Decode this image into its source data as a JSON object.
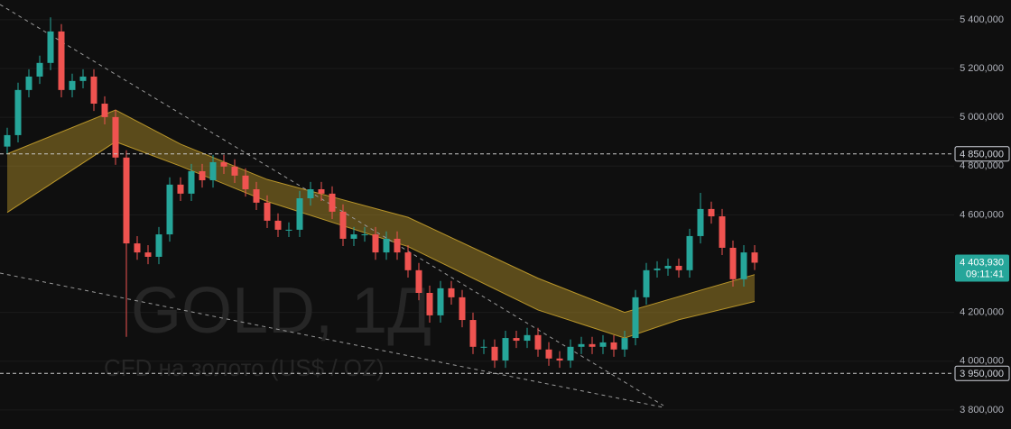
{
  "chart_data": {
    "type": "candlestick",
    "watermark": {
      "title": "GOLD, 1Д",
      "subtitle": "CFD на золото (US$ / OZ)"
    },
    "up_color": "#26a69a",
    "down_color": "#ef5350",
    "ylim": [
      3722,
      5481
    ],
    "yticks": [
      {
        "value": 5400,
        "label": "5 400,000"
      },
      {
        "value": 5200,
        "label": "5 200,000"
      },
      {
        "value": 5000,
        "label": "5 000,000"
      },
      {
        "value": 4800,
        "label": "4 800,000"
      },
      {
        "value": 4600,
        "label": "4 600,000"
      },
      {
        "value": 4200,
        "label": "4 200,000"
      },
      {
        "value": 4000,
        "label": "4 000,000"
      },
      {
        "value": 3800,
        "label": "3 800,000"
      }
    ],
    "grid": true,
    "levels": [
      {
        "value": 4850,
        "label": "4 850,000"
      },
      {
        "value": 3950,
        "label": "3 950,000"
      }
    ],
    "last": {
      "value": 4403.93,
      "label": "4 403,930",
      "countdown": "09:11:41"
    },
    "open": [
      4880,
      4927,
      5112,
      5167,
      5223,
      5352,
      5112,
      5149,
      5167,
      5056,
      5001,
      4835,
      4483,
      4446,
      4428,
      4520,
      4724,
      4687,
      4779,
      4742,
      4816,
      4798,
      4761,
      4705,
      4650,
      4576,
      4539,
      4539,
      4668,
      4705,
      4687,
      4613,
      4502,
      4520,
      4520,
      4446,
      4502,
      4446,
      4373,
      4280,
      4188,
      4299,
      4262,
      4169,
      4059,
      4059,
      4003,
      4095,
      4084,
      4107,
      4048,
      4011,
      4003,
      4059,
      4070,
      4059,
      4077,
      4048,
      4095,
      4262,
      4373,
      4380,
      4391,
      4373,
      4513,
      4624,
      4594,
      4465,
      4336,
      4446
    ],
    "high": [
      4957,
      5142,
      5197,
      5253,
      5410,
      5382,
      5179,
      5197,
      5197,
      5086,
      5031,
      4865,
      4513,
      4476,
      4550,
      4754,
      4754,
      4809,
      4809,
      4846,
      4846,
      4828,
      4791,
      4735,
      4680,
      4606,
      4569,
      4698,
      4735,
      4735,
      4717,
      4643,
      4550,
      4550,
      4550,
      4532,
      4532,
      4476,
      4403,
      4310,
      4329,
      4329,
      4292,
      4199,
      4089,
      4089,
      4125,
      4125,
      4137,
      4137,
      4078,
      4041,
      4089,
      4100,
      4100,
      4107,
      4107,
      4125,
      4292,
      4403,
      4410,
      4421,
      4421,
      4543,
      4690,
      4654,
      4624,
      4495,
      4476,
      4476
    ],
    "low": [
      4850,
      4897,
      5082,
      5137,
      5193,
      5082,
      5082,
      5119,
      5026,
      4971,
      4805,
      4100,
      4416,
      4398,
      4398,
      4490,
      4657,
      4657,
      4712,
      4712,
      4768,
      4731,
      4675,
      4620,
      4546,
      4509,
      4509,
      4509,
      4638,
      4657,
      4583,
      4472,
      4472,
      4490,
      4416,
      4416,
      4416,
      4343,
      4250,
      4158,
      4158,
      4232,
      4139,
      4029,
      4029,
      3973,
      3973,
      4054,
      4054,
      4018,
      3981,
      3973,
      3973,
      4029,
      4029,
      4029,
      4018,
      4018,
      4065,
      4232,
      4343,
      4350,
      4343,
      4343,
      4483,
      4564,
      4435,
      4306,
      4306,
      4374
    ],
    "close": [
      4927,
      5112,
      5167,
      5223,
      5352,
      5112,
      5149,
      5167,
      5056,
      5001,
      4835,
      4483,
      4446,
      4428,
      4520,
      4724,
      4687,
      4779,
      4742,
      4816,
      4798,
      4761,
      4705,
      4650,
      4576,
      4539,
      4539,
      4668,
      4705,
      4687,
      4613,
      4502,
      4520,
      4520,
      4446,
      4502,
      4446,
      4373,
      4280,
      4188,
      4299,
      4262,
      4169,
      4059,
      4059,
      4003,
      4095,
      4084,
      4107,
      4048,
      4011,
      4003,
      4059,
      4070,
      4059,
      4077,
      4048,
      4095,
      4262,
      4373,
      4380,
      4391,
      4373,
      4513,
      4624,
      4594,
      4465,
      4336,
      4446,
      4403.93
    ],
    "band": {
      "index": [
        0,
        10,
        16,
        24,
        37,
        49,
        57,
        62,
        69
      ],
      "upper": [
        4850,
        5030,
        4890,
        4745,
        4590,
        4340,
        4200,
        4265,
        4355
      ],
      "lower": [
        4610,
        4900,
        4800,
        4655,
        4470,
        4210,
        4095,
        4170,
        4245
      ],
      "color": "#b8952a"
    }
  }
}
